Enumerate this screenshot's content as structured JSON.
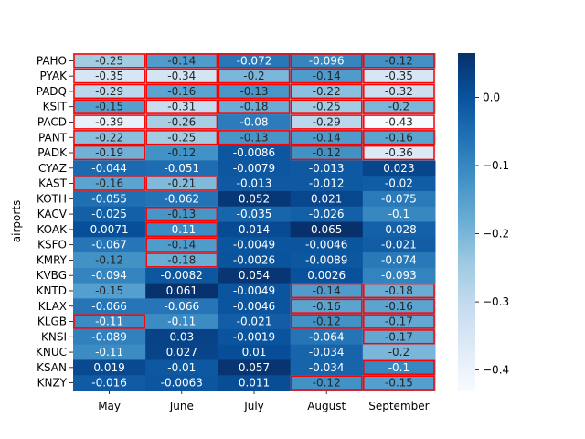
{
  "chart_data": {
    "type": "heatmap",
    "title": "",
    "xlabel": "",
    "ylabel": "airports",
    "x_categories": [
      "May",
      "June",
      "July",
      "August",
      "September"
    ],
    "y_categories": [
      "PAHO",
      "PYAK",
      "PADQ",
      "KSIT",
      "PACD",
      "PANT",
      "PADK",
      "CYAZ",
      "KAST",
      "KOTH",
      "KACV",
      "KOAK",
      "KSFO",
      "KMRY",
      "KVBG",
      "KNTD",
      "KLAX",
      "KLGB",
      "KNSI",
      "KNUC",
      "KSAN",
      "KNZY"
    ],
    "values": [
      [
        -0.25,
        -0.14,
        -0.072,
        -0.096,
        -0.12
      ],
      [
        -0.35,
        -0.34,
        -0.2,
        -0.14,
        -0.35
      ],
      [
        -0.29,
        -0.16,
        -0.13,
        -0.22,
        -0.32
      ],
      [
        -0.15,
        -0.31,
        -0.18,
        -0.25,
        -0.2
      ],
      [
        -0.39,
        -0.26,
        -0.08,
        -0.29,
        -0.43
      ],
      [
        -0.22,
        -0.25,
        -0.13,
        -0.14,
        -0.16
      ],
      [
        -0.19,
        -0.12,
        -0.0086,
        -0.12,
        -0.36
      ],
      [
        -0.044,
        -0.051,
        -0.0079,
        -0.013,
        0.023
      ],
      [
        -0.16,
        -0.21,
        -0.013,
        -0.012,
        -0.02
      ],
      [
        -0.055,
        -0.062,
        0.052,
        0.021,
        -0.075
      ],
      [
        -0.025,
        -0.13,
        -0.035,
        -0.026,
        -0.1
      ],
      [
        0.0071,
        -0.11,
        0.014,
        0.065,
        -0.028
      ],
      [
        -0.067,
        -0.14,
        -0.0049,
        -0.0046,
        -0.021
      ],
      [
        -0.12,
        -0.18,
        -0.0026,
        -0.0089,
        -0.074
      ],
      [
        -0.094,
        -0.0082,
        0.054,
        0.0026,
        -0.093
      ],
      [
        -0.15,
        0.061,
        -0.0049,
        -0.14,
        -0.18
      ],
      [
        -0.066,
        -0.066,
        -0.0046,
        -0.16,
        -0.16
      ],
      [
        -0.11,
        -0.11,
        -0.021,
        -0.12,
        -0.17
      ],
      [
        -0.089,
        0.03,
        -0.0019,
        -0.064,
        -0.17
      ],
      [
        -0.11,
        0.027,
        0.01,
        -0.034,
        -0.2
      ],
      [
        0.019,
        -0.01,
        0.057,
        -0.034,
        -0.1
      ],
      [
        -0.016,
        -0.0063,
        0.011,
        -0.12,
        -0.15
      ]
    ],
    "highlighted": [
      [
        0,
        0
      ],
      [
        0,
        1
      ],
      [
        0,
        2
      ],
      [
        0,
        3
      ],
      [
        0,
        4
      ],
      [
        1,
        0
      ],
      [
        1,
        1
      ],
      [
        1,
        2
      ],
      [
        1,
        3
      ],
      [
        1,
        4
      ],
      [
        2,
        0
      ],
      [
        2,
        1
      ],
      [
        2,
        2
      ],
      [
        2,
        3
      ],
      [
        2,
        4
      ],
      [
        3,
        0
      ],
      [
        3,
        1
      ],
      [
        3,
        2
      ],
      [
        3,
        3
      ],
      [
        3,
        4
      ],
      [
        4,
        0
      ],
      [
        4,
        1
      ],
      [
        4,
        3
      ],
      [
        4,
        4
      ],
      [
        5,
        0
      ],
      [
        5,
        1
      ],
      [
        5,
        2
      ],
      [
        5,
        3
      ],
      [
        5,
        4
      ],
      [
        6,
        0
      ],
      [
        6,
        3
      ],
      [
        6,
        4
      ],
      [
        8,
        0
      ],
      [
        8,
        1
      ],
      [
        10,
        1
      ],
      [
        11,
        1
      ],
      [
        12,
        1
      ],
      [
        13,
        1
      ],
      [
        15,
        3
      ],
      [
        15,
        4
      ],
      [
        16,
        3
      ],
      [
        16,
        4
      ],
      [
        17,
        0
      ],
      [
        17,
        3
      ],
      [
        17,
        4
      ],
      [
        18,
        4
      ],
      [
        20,
        4
      ],
      [
        21,
        3
      ],
      [
        21,
        4
      ]
    ],
    "highlight_color": "#ff0000",
    "colormap": "Blues",
    "color_range": [
      -0.43,
      0.065
    ],
    "colorbar_ticks": [
      0,
      -0.1,
      -0.2,
      -0.3,
      -0.4
    ],
    "colorbar_tick_labels": [
      "0.0",
      "−0.1",
      "−0.2",
      "−0.3",
      "−0.4"
    ],
    "grid": false,
    "legend": "colorbar-right"
  }
}
